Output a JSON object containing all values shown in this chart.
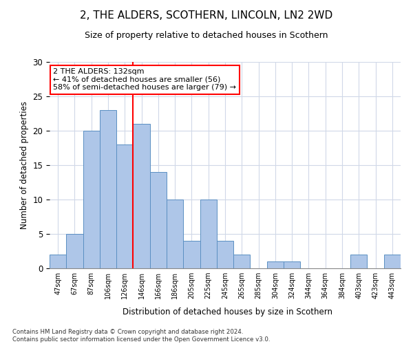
{
  "title1": "2, THE ALDERS, SCOTHERN, LINCOLN, LN2 2WD",
  "title2": "Size of property relative to detached houses in Scothern",
  "xlabel": "Distribution of detached houses by size in Scothern",
  "ylabel": "Number of detached properties",
  "categories": [
    "47sqm",
    "67sqm",
    "87sqm",
    "106sqm",
    "126sqm",
    "146sqm",
    "166sqm",
    "186sqm",
    "205sqm",
    "225sqm",
    "245sqm",
    "265sqm",
    "285sqm",
    "304sqm",
    "324sqm",
    "344sqm",
    "364sqm",
    "384sqm",
    "403sqm",
    "423sqm",
    "443sqm"
  ],
  "values": [
    2,
    5,
    20,
    23,
    18,
    21,
    14,
    10,
    4,
    10,
    4,
    2,
    0,
    1,
    1,
    0,
    0,
    0,
    2,
    0,
    2
  ],
  "bar_color": "#aec6e8",
  "bar_edge_color": "#5a8fc2",
  "vline_x": 4.5,
  "vline_color": "red",
  "annotation_text": "2 THE ALDERS: 132sqm\n← 41% of detached houses are smaller (56)\n58% of semi-detached houses are larger (79) →",
  "annotation_box_color": "white",
  "annotation_box_edge_color": "red",
  "ylim": [
    0,
    30
  ],
  "yticks": [
    0,
    5,
    10,
    15,
    20,
    25,
    30
  ],
  "footer": "Contains HM Land Registry data © Crown copyright and database right 2024.\nContains public sector information licensed under the Open Government Licence v3.0.",
  "bg_color": "white",
  "grid_color": "#d0d8e8"
}
